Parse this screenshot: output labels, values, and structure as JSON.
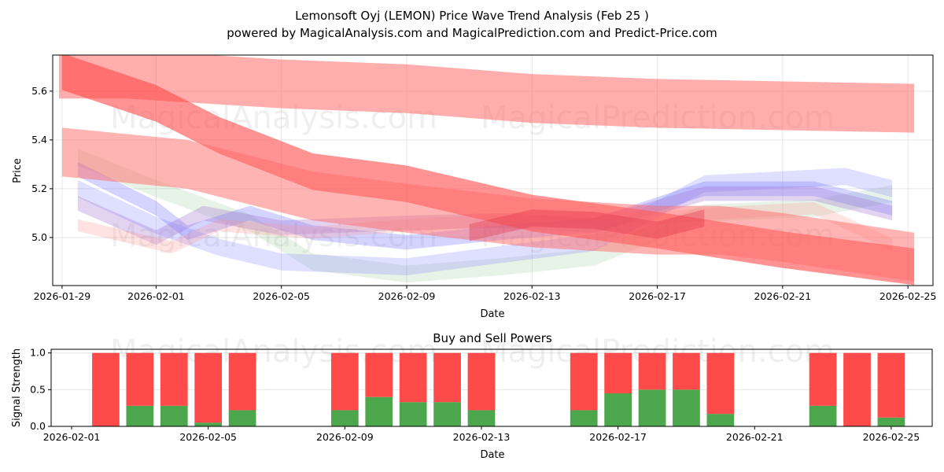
{
  "title_line1": "Lemonsoft Oyj (LEMON) Price Wave Trend Analysis (Feb 25 )",
  "title_line2": "powered by MagicalAnalysis.com and MagicalPrediction.com and Predict-Price.com",
  "watermarks": [
    "MagicalAnalysis.com",
    "MagicalPrediction.com"
  ],
  "chart_data": [
    {
      "type": "area",
      "title": "",
      "xlabel": "Date",
      "ylabel": "Price",
      "x_start_date": "2026-01-29",
      "xlim_days": [
        -0.3,
        27.8
      ],
      "ylim": [
        4.803,
        5.748
      ],
      "x_ticks": [
        {
          "day": 0,
          "label": "2026-01-29"
        },
        {
          "day": 3,
          "label": "2026-02-01"
        },
        {
          "day": 7,
          "label": "2026-02-05"
        },
        {
          "day": 11,
          "label": "2026-02-09"
        },
        {
          "day": 15,
          "label": "2026-02-13"
        },
        {
          "day": 19,
          "label": "2026-02-17"
        },
        {
          "day": 23,
          "label": "2026-02-21"
        },
        {
          "day": 27,
          "label": "2026-02-25"
        }
      ],
      "y_ticks": [
        {
          "value": 5.0,
          "label": "5.0"
        },
        {
          "value": 5.2,
          "label": "5.2"
        },
        {
          "value": 5.4,
          "label": "5.4"
        },
        {
          "value": 5.6,
          "label": "5.6"
        }
      ],
      "grid": true,
      "bands": [
        {
          "name": "red-upper",
          "color": "#ff6a6a",
          "opacity": 0.55,
          "width": 0.2,
          "points": [
            [
              -0.1,
              5.67
            ],
            [
              2,
              5.67
            ],
            [
              7,
              5.63
            ],
            [
              11,
              5.61
            ],
            [
              15,
              5.57
            ],
            [
              19,
              5.55
            ],
            [
              23,
              5.54
            ],
            [
              27.2,
              5.53
            ]
          ]
        },
        {
          "name": "green-faint",
          "color": "#88c488",
          "opacity": 0.2,
          "width": 0.07,
          "points": [
            [
              0.5,
              5.33
            ],
            [
              3,
              5.2
            ],
            [
              6,
              5.06
            ],
            [
              8,
              4.9
            ],
            [
              11,
              4.85
            ],
            [
              14,
              4.88
            ],
            [
              17,
              4.92
            ],
            [
              20.5,
              5.1
            ],
            [
              24,
              5.12
            ],
            [
              26.5,
              5.18
            ]
          ]
        },
        {
          "name": "blue-lower",
          "color": "#8080ff",
          "opacity": 0.25,
          "width": 0.07,
          "points": [
            [
              0.5,
              5.2
            ],
            [
              3,
              5.05
            ],
            [
              5,
              4.96
            ],
            [
              7,
              4.9
            ],
            [
              11,
              4.88
            ],
            [
              14,
              4.93
            ],
            [
              17,
              4.98
            ],
            [
              20.5,
              5.22
            ],
            [
              25,
              5.25
            ],
            [
              26.5,
              5.2
            ]
          ]
        },
        {
          "name": "blue-mid",
          "color": "#7070ff",
          "opacity": 0.3,
          "width": 0.06,
          "points": [
            [
              0.5,
              5.28
            ],
            [
              3,
              5.12
            ],
            [
              4,
              5.02
            ],
            [
              6,
              5.1
            ],
            [
              8,
              5.02
            ],
            [
              11,
              4.98
            ],
            [
              14,
              5.02
            ],
            [
              17,
              5.05
            ],
            [
              20.5,
              5.2
            ],
            [
              24,
              5.2
            ],
            [
              26.5,
              5.12
            ]
          ]
        },
        {
          "name": "purple-upper",
          "color": "#a070d0",
          "opacity": 0.3,
          "width": 0.06,
          "points": [
            [
              0.5,
              5.14
            ],
            [
              3,
              5.0
            ],
            [
              4.5,
              5.1
            ],
            [
              7,
              5.04
            ],
            [
              11,
              5.06
            ],
            [
              14,
              5.07
            ],
            [
              17,
              5.05
            ],
            [
              20.5,
              5.18
            ],
            [
              24,
              5.18
            ],
            [
              26.5,
              5.1
            ]
          ]
        },
        {
          "name": "pink-low",
          "color": "#ff9090",
          "opacity": 0.25,
          "width": 0.05,
          "points": [
            [
              0.5,
              5.05
            ],
            [
              3.5,
              4.96
            ],
            [
              5,
              5.05
            ],
            [
              8,
              5.02
            ],
            [
              11,
              5.05
            ],
            [
              15,
              5.08
            ],
            [
              19,
              5.08
            ],
            [
              21,
              5.1
            ],
            [
              24,
              5.12
            ],
            [
              26.5,
              4.97
            ]
          ]
        },
        {
          "name": "red-diagonal",
          "color": "#ff4a4a",
          "opacity": 0.6,
          "width": 0.15,
          "points": [
            [
              0,
              5.68
            ],
            [
              3,
              5.55
            ],
            [
              5,
              5.42
            ],
            [
              8,
              5.27
            ],
            [
              11,
              5.22
            ],
            [
              15,
              5.1
            ],
            [
              19,
              5.03
            ],
            [
              23,
              4.95
            ],
            [
              27.2,
              4.88
            ]
          ]
        },
        {
          "name": "red-middle",
          "color": "#ff6a6a",
          "opacity": 0.5,
          "width": 0.2,
          "points": [
            [
              0,
              5.35
            ],
            [
              4,
              5.3
            ],
            [
              8,
              5.17
            ],
            [
              11,
              5.12
            ],
            [
              15,
              5.06
            ],
            [
              19,
              5.03
            ],
            [
              21,
              5.03
            ],
            [
              23,
              5.0
            ],
            [
              27.2,
              4.92
            ]
          ]
        },
        {
          "name": "crimson-overlap",
          "color": "#e0304a",
          "opacity": 0.35,
          "width": 0.07,
          "points": [
            [
              13,
              5.02
            ],
            [
              15,
              5.08
            ],
            [
              17,
              5.07
            ],
            [
              19,
              5.03
            ],
            [
              20.5,
              5.08
            ]
          ]
        }
      ]
    },
    {
      "type": "bar",
      "title": "Buy and Sell Powers",
      "xlabel": "Date",
      "ylabel": "Signal Strength",
      "x_start_date": "2026-02-01",
      "xlim_days": [
        -0.6,
        25.2
      ],
      "ylim": [
        0,
        1.05
      ],
      "x_ticks": [
        {
          "day": 0,
          "label": "2026-02-01"
        },
        {
          "day": 4,
          "label": "2026-02-05"
        },
        {
          "day": 8,
          "label": "2026-02-09"
        },
        {
          "day": 12,
          "label": "2026-02-13"
        },
        {
          "day": 16,
          "label": "2026-02-17"
        },
        {
          "day": 20,
          "label": "2026-02-21"
        },
        {
          "day": 24,
          "label": "2026-02-25"
        }
      ],
      "y_ticks": [
        {
          "value": 0,
          "label": "0.0"
        },
        {
          "value": 0.5,
          "label": "0.5"
        },
        {
          "value": 1.0,
          "label": "1.0"
        }
      ],
      "grid": true,
      "colors": {
        "buy": "#4ca64c",
        "sell": "#ff4a4a"
      },
      "days": [
        1,
        2,
        3,
        4,
        5,
        8,
        9,
        10,
        11,
        12,
        15,
        16,
        17,
        18,
        19,
        22,
        23,
        24
      ],
      "dates": [
        "2026-02-02",
        "2026-02-03",
        "2026-02-04",
        "2026-02-05",
        "2026-02-06",
        "2026-02-09",
        "2026-02-10",
        "2026-02-11",
        "2026-02-12",
        "2026-02-13",
        "2026-02-16",
        "2026-02-17",
        "2026-02-18",
        "2026-02-19",
        "2026-02-20",
        "2026-02-23",
        "2026-02-24",
        "2026-02-25"
      ],
      "series": [
        {
          "name": "Buy",
          "values": [
            0,
            0.28,
            0.28,
            0.05,
            0.22,
            0.22,
            0.4,
            0.33,
            0.33,
            0.22,
            0.22,
            0.45,
            0.5,
            0.5,
            0.17,
            0.28,
            0,
            0.12
          ]
        },
        {
          "name": "Sell",
          "values": [
            1,
            0.72,
            0.72,
            0.95,
            0.78,
            0.78,
            0.6,
            0.67,
            0.67,
            0.78,
            0.78,
            0.55,
            0.5,
            0.5,
            0.83,
            0.72,
            1,
            0.88
          ]
        }
      ]
    }
  ]
}
